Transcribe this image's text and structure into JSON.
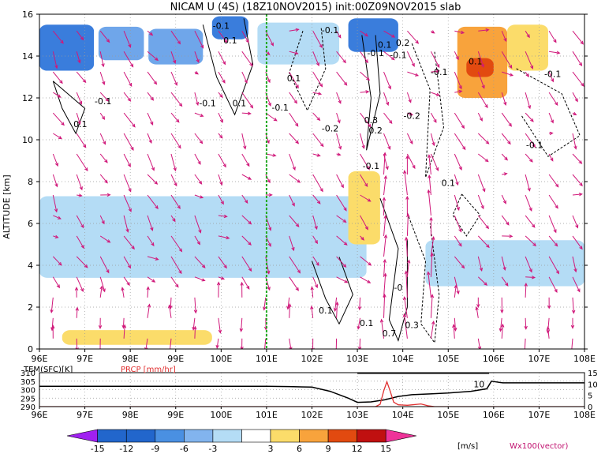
{
  "chart_data": [
    {
      "type": "heatmap",
      "title": "NICAM U (4S) (18Z10NOV2015) init:00Z09NOV2015 slab",
      "ylabel": "ALTITUDE [km]",
      "xlim": [
        96,
        108
      ],
      "ylim": [
        0,
        16
      ],
      "x_ticks": [
        "96E",
        "97E",
        "98E",
        "99E",
        "100E",
        "101E",
        "102E",
        "103E",
        "104E",
        "105E",
        "106E",
        "107E",
        "108E"
      ],
      "y_ticks": [
        "0",
        "2",
        "4",
        "6",
        "8",
        "10",
        "12",
        "14",
        "16"
      ],
      "grid": true,
      "reference_line_lon": 101,
      "shaded_regions": [
        {
          "lon": [
            96.0,
            97.2
          ],
          "alt": [
            13.3,
            15.5
          ],
          "u_range": "-9 to -12"
        },
        {
          "lon": [
            97.3,
            98.3
          ],
          "alt": [
            13.8,
            15.4
          ],
          "u_range": "-6 to -9"
        },
        {
          "lon": [
            98.4,
            99.6
          ],
          "alt": [
            13.6,
            15.3
          ],
          "u_range": "-6 to -9"
        },
        {
          "lon": [
            99.8,
            100.6
          ],
          "alt": [
            14.8,
            15.9
          ],
          "u_range": "-9 to -12"
        },
        {
          "lon": [
            100.8,
            102.6
          ],
          "alt": [
            13.6,
            15.6
          ],
          "u_range": "-3 to -6"
        },
        {
          "lon": [
            102.8,
            103.9
          ],
          "alt": [
            14.2,
            15.8
          ],
          "u_range": "-9 to -12"
        },
        {
          "lon": [
            105.2,
            106.3
          ],
          "alt": [
            12.0,
            15.4
          ],
          "u_range": "6 to 9"
        },
        {
          "lon": [
            106.3,
            107.2
          ],
          "alt": [
            13.3,
            15.5
          ],
          "u_range": "3 to 6"
        },
        {
          "lon": [
            105.4,
            106.0
          ],
          "alt": [
            13.0,
            13.9
          ],
          "u_range": "9 to 12"
        },
        {
          "lon": [
            96.0,
            103.2
          ],
          "alt": [
            3.4,
            7.3
          ],
          "u_range": "-3 to -6"
        },
        {
          "lon": [
            96.5,
            99.8
          ],
          "alt": [
            0.2,
            0.9
          ],
          "u_range": "3 to 6"
        },
        {
          "lon": [
            102.8,
            103.5
          ],
          "alt": [
            5.0,
            8.5
          ],
          "u_range": "3 to 6"
        },
        {
          "lon": [
            104.5,
            108.0
          ],
          "alt": [
            3.0,
            5.2
          ],
          "u_range": "-3 to -6"
        }
      ],
      "contour_labels": [
        {
          "lon": 100.2,
          "alt": 14.6,
          "text": "0.1"
        },
        {
          "lon": 100.0,
          "alt": 15.3,
          "text": "-0.1"
        },
        {
          "lon": 102.4,
          "alt": 15.1,
          "text": "-0.1"
        },
        {
          "lon": 103.6,
          "alt": 14.4,
          "text": "0.1"
        },
        {
          "lon": 103.4,
          "alt": 14.0,
          "text": "-0.1"
        },
        {
          "lon": 104.0,
          "alt": 14.5,
          "text": "0.2"
        },
        {
          "lon": 103.9,
          "alt": 13.9,
          "text": "-0.1"
        },
        {
          "lon": 101.6,
          "alt": 12.8,
          "text": "0.1"
        },
        {
          "lon": 97.4,
          "alt": 11.7,
          "text": "-0.1"
        },
        {
          "lon": 99.7,
          "alt": 11.6,
          "text": "-0.1"
        },
        {
          "lon": 100.4,
          "alt": 11.6,
          "text": "0.1"
        },
        {
          "lon": 101.3,
          "alt": 11.4,
          "text": "-0.1"
        },
        {
          "lon": 96.9,
          "alt": 10.6,
          "text": "0.1"
        },
        {
          "lon": 102.4,
          "alt": 10.4,
          "text": "-0.2"
        },
        {
          "lon": 103.3,
          "alt": 10.8,
          "text": "0.3"
        },
        {
          "lon": 103.4,
          "alt": 10.3,
          "text": "0.2"
        },
        {
          "lon": 104.2,
          "alt": 11.0,
          "text": "-0.2"
        },
        {
          "lon": 104.8,
          "alt": 13.1,
          "text": "-0.1"
        },
        {
          "lon": 105.6,
          "alt": 13.6,
          "text": "0.1"
        },
        {
          "lon": 107.3,
          "alt": 13.0,
          "text": "-0.1"
        },
        {
          "lon": 106.9,
          "alt": 9.6,
          "text": "-0.1"
        },
        {
          "lon": 105.0,
          "alt": 7.8,
          "text": "0.1"
        },
        {
          "lon": 103.3,
          "alt": 8.6,
          "text": "-0.1"
        },
        {
          "lon": 102.3,
          "alt": 1.7,
          "text": "0.1"
        },
        {
          "lon": 103.2,
          "alt": 1.1,
          "text": "0.1"
        },
        {
          "lon": 103.9,
          "alt": 2.8,
          "text": "-0"
        },
        {
          "lon": 104.2,
          "alt": 1.0,
          "text": "0.3"
        },
        {
          "lon": 103.7,
          "alt": 0.6,
          "text": "0.7"
        }
      ]
    },
    {
      "type": "line",
      "series": [
        {
          "name": "TEM(SFC)[K]",
          "x": [
            96,
            97,
            98,
            99,
            100,
            101,
            101.5,
            102,
            102.4,
            102.8,
            103.0,
            103.3,
            103.6,
            103.9,
            104.2,
            104.6,
            105,
            105.5,
            105.85,
            105.95,
            106.2,
            107,
            108
          ],
          "y": [
            302,
            302,
            302,
            302,
            302,
            302,
            301.8,
            301.5,
            299,
            295,
            292.5,
            292.8,
            294,
            296,
            297,
            297.5,
            298,
            299,
            300.5,
            305,
            304,
            304,
            304
          ]
        },
        {
          "name": "PRCP [mm/hr]",
          "x": [
            96,
            103.4,
            103.5,
            103.58,
            103.65,
            103.72,
            103.8,
            103.9,
            104.1,
            104.4,
            104.55,
            104.7,
            108
          ],
          "y": [
            0,
            0,
            1,
            7,
            11,
            7,
            2,
            0.8,
            0.6,
            1.2,
            0.4,
            0,
            0
          ]
        }
      ],
      "legend": [
        "TEM(SFC)[K]",
        "PRCP [mm/hr]"
      ],
      "y_ticks_left": [
        "290",
        "295",
        "300",
        "305",
        "310"
      ],
      "y_ticks_right": [
        "0",
        "5",
        "10",
        "15"
      ],
      "x_ticks": [
        "96E",
        "97E",
        "98E",
        "99E",
        "100E",
        "101E",
        "102E",
        "103E",
        "104E",
        "105E",
        "106E",
        "107E",
        "108E"
      ],
      "annotations": [
        {
          "text": "10",
          "x": 105.8,
          "y": 10
        }
      ]
    }
  ],
  "colorbar": {
    "ticks": [
      "-15",
      "-12",
      "-9",
      "-6",
      "-3",
      "3",
      "6",
      "9",
      "12",
      "15"
    ],
    "unit": "[m/s]",
    "colors": [
      "#a020f0",
      "#2266cc",
      "#4a90e2",
      "#82b4ee",
      "#b4dcf5",
      "#ffffff",
      "#fbdc6a",
      "#f8a33c",
      "#e24a10",
      "#c01010",
      "#aa0a0a",
      "#ee3399"
    ]
  },
  "vector_label": "Wx100(vector)"
}
